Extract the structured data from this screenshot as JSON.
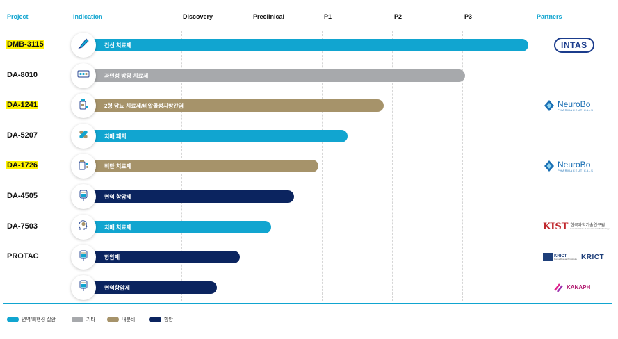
{
  "header": {
    "project": "Project",
    "indication": "Indication",
    "phases": [
      "Discovery",
      "Preclinical",
      "P1",
      "P2",
      "P3"
    ],
    "partners": "Partners"
  },
  "colors": {
    "cyan": "#11a5d0",
    "gray": "#a7a9ac",
    "gold": "#a6936a",
    "navy": "#0b245f"
  },
  "rows": [
    {
      "project": "DMB-3115",
      "highlight": true,
      "indication": "건선 치료제",
      "color": "cyan",
      "phase_progress": 0.99,
      "icon": "syringe-icon",
      "partner": "intas"
    },
    {
      "project": "DA-8010",
      "highlight": false,
      "indication": "과민성 방광 치료제",
      "color": "gray",
      "phase_progress": 0.85,
      "icon": "pill-blister-icon",
      "partner": ""
    },
    {
      "project": "DA-1241",
      "highlight": true,
      "indication": "2형 당뇨 치료제/비알콜성지방간염",
      "color": "gold",
      "phase_progress": 0.67,
      "icon": "medicine-bottle-icon",
      "partner": "neurobo"
    },
    {
      "project": "DA-5207",
      "highlight": false,
      "indication": "치매 패치",
      "color": "cyan",
      "phase_progress": 0.59,
      "icon": "bandage-icon",
      "partner": ""
    },
    {
      "project": "DA-1726",
      "highlight": true,
      "indication": "비만 치료제",
      "color": "gold",
      "phase_progress": 0.525,
      "icon": "pills-bottle-icon",
      "partner": "neurobo"
    },
    {
      "project": "DA-4505",
      "highlight": false,
      "indication": "면역 항암제",
      "color": "navy",
      "phase_progress": 0.47,
      "icon": "iv-bag-icon",
      "partner": ""
    },
    {
      "project": "DA-7503",
      "highlight": false,
      "indication": "치매 치료제",
      "color": "cyan",
      "phase_progress": 0.42,
      "icon": "brain-head-icon",
      "partner": "kist"
    },
    {
      "project": "PROTAC",
      "highlight": false,
      "indication": "항암제",
      "color": "navy",
      "phase_progress": 0.35,
      "icon": "iv-bag-icon",
      "partner": "krict"
    },
    {
      "project": "",
      "highlight": false,
      "indication": "면역항암제",
      "color": "navy",
      "phase_progress": 0.3,
      "icon": "iv-bag-icon",
      "partner": "kanaph"
    }
  ],
  "partners": {
    "intas": {
      "name": "INTAS"
    },
    "neurobo": {
      "name": "NeuroBo",
      "sub": "PHARMACEUTICALS"
    },
    "kist": {
      "logo": "KIST",
      "name": "한국과학기술연구원",
      "sub": "Korea Institute of Science and Technology"
    },
    "krict": {
      "box_name": "KRICT",
      "box_sub": "Korea Research Institute",
      "word": "KRICT"
    },
    "kanaph": {
      "name": "KANAPH"
    }
  },
  "legend": [
    {
      "label": "면역/퇴행성 질환",
      "color": "cyan"
    },
    {
      "label": "기타",
      "color": "gray"
    },
    {
      "label": "내분비",
      "color": "gold"
    },
    {
      "label": "항암",
      "color": "navy"
    }
  ]
}
